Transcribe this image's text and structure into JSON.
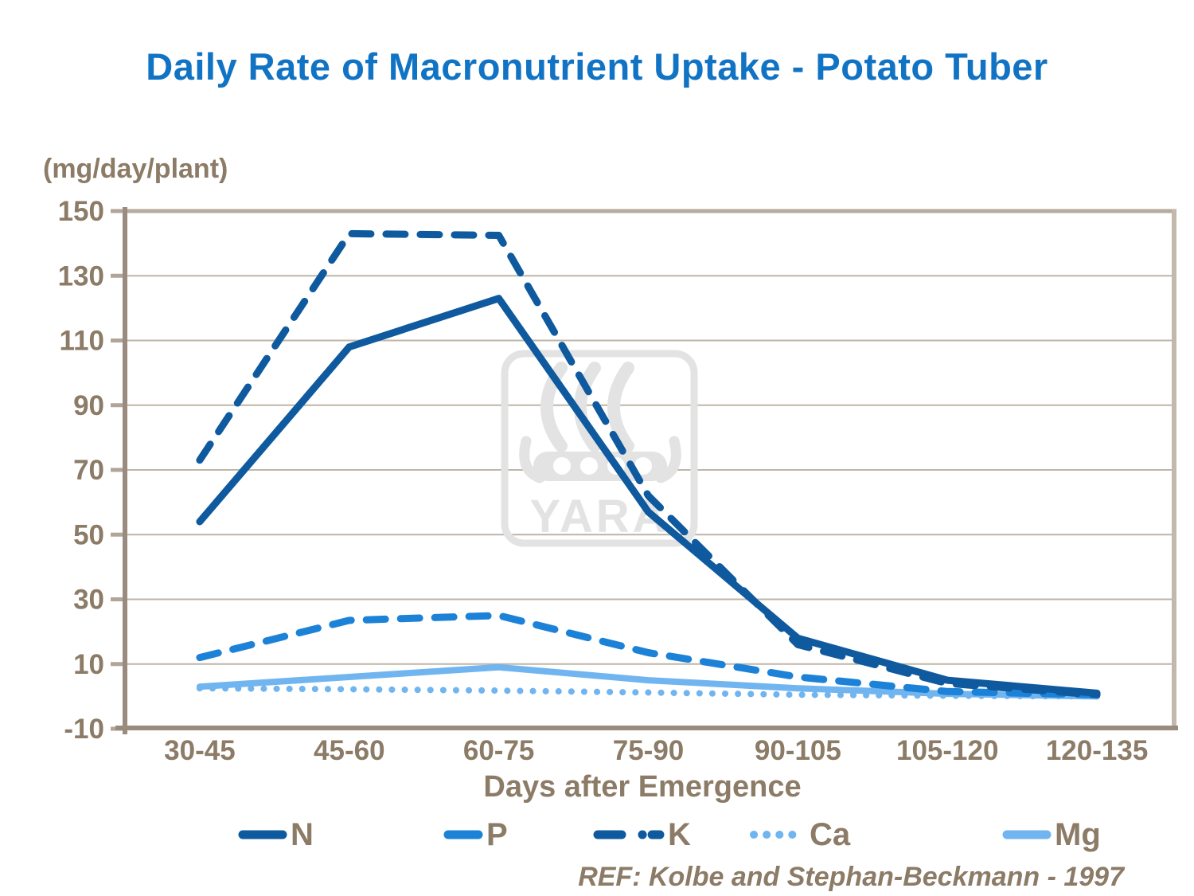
{
  "title": "Daily Rate of Macronutrient Uptake - Potato Tuber",
  "y_axis_unit": "(mg/day/plant)",
  "x_axis_title": "Days after Emergence",
  "ref_text": "REF: Kolbe and Stephan-Beckmann - 1997",
  "watermark_text": "YARA",
  "colors": {
    "title": "#1173c4",
    "axis_text": "#8c7b66",
    "axis_line": "#998b7d",
    "tick_mark": "#b0a598",
    "frame": "#b6ab9e",
    "frame_right": "#c2b8ac",
    "gridline": "#bfb5a8",
    "watermark": "#e3e3e3",
    "dark_blue": "#0f5a9e",
    "bright_blue": "#1c82d8",
    "light_blue": "#70b5f0"
  },
  "chart_data": {
    "type": "line",
    "title": "Daily Rate of Macronutrient Uptake - Potato Tuber",
    "xlabel": "Days after Emergence",
    "ylabel": "(mg/day/plant)",
    "categories": [
      "30-45",
      "45-60",
      "60-75",
      "75-90",
      "90-105",
      "105-120",
      "120-135"
    ],
    "series": [
      {
        "name": "N",
        "color": "#0f5a9e",
        "line_style": "solid",
        "legend_marker": "solid",
        "values": [
          54,
          108,
          123,
          57,
          18,
          5,
          1
        ]
      },
      {
        "name": "P",
        "color": "#1c82d8",
        "line_style": "dashed",
        "legend_marker": "dash",
        "values": [
          12,
          23.5,
          25,
          13.5,
          6,
          1.5,
          0.5
        ]
      },
      {
        "name": "K",
        "color": "#0f5a9e",
        "line_style": "dashed",
        "legend_marker": "dash-dot",
        "values": [
          73,
          143,
          142.5,
          62,
          16,
          4,
          0.5
        ]
      },
      {
        "name": "Ca",
        "color": "#70b5f0",
        "line_style": "dotted",
        "legend_marker": "dots",
        "values": [
          2.5,
          2.2,
          1.8,
          1.2,
          0.5,
          0.2,
          0
        ]
      },
      {
        "name": "Mg",
        "color": "#70b5f0",
        "line_style": "solid",
        "legend_marker": "solid",
        "values": [
          3,
          6,
          9,
          5,
          2.5,
          0.8,
          0
        ]
      }
    ],
    "ylim": [
      -10,
      150
    ],
    "y_ticks": [
      150,
      130,
      110,
      90,
      70,
      50,
      30,
      10,
      -10
    ],
    "grid": true,
    "legend_position": "bottom"
  }
}
